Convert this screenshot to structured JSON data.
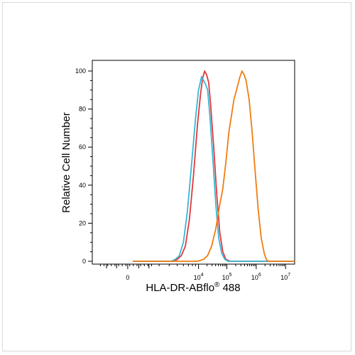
{
  "chart_data": {
    "type": "line",
    "xlabel": "HLA-DR-ABflo",
    "xlabel_sup": "®",
    "xlabel_suffix": " 488",
    "ylabel": "Relative Cell Number",
    "y_ticks": [
      "0",
      "20",
      "40",
      "60",
      "80",
      "100"
    ],
    "x_ticks": [
      {
        "text": "0",
        "base": "0",
        "exp": ""
      },
      {
        "text": "10^4",
        "base": "10",
        "exp": "4"
      },
      {
        "text": "10^5",
        "base": "10",
        "exp": "5"
      },
      {
        "text": "10^6",
        "base": "10",
        "exp": "6"
      },
      {
        "text": "10^7",
        "base": "10",
        "exp": "7"
      }
    ],
    "x_scale": "biexponential",
    "ylim": [
      0,
      100
    ],
    "grid": false,
    "legend": "none",
    "series": [
      {
        "color": "#e5373b",
        "points": [
          [
            0.2,
            0
          ],
          [
            0.4,
            0
          ],
          [
            0.42,
            1
          ],
          [
            0.44,
            3
          ],
          [
            0.46,
            8
          ],
          [
            0.48,
            22
          ],
          [
            0.5,
            45
          ],
          [
            0.52,
            72
          ],
          [
            0.535,
            88
          ],
          [
            0.545,
            96
          ],
          [
            0.555,
            100
          ],
          [
            0.565,
            98
          ],
          [
            0.575,
            94
          ],
          [
            0.585,
            82
          ],
          [
            0.6,
            60
          ],
          [
            0.615,
            35
          ],
          [
            0.63,
            15
          ],
          [
            0.645,
            5
          ],
          [
            0.66,
            1
          ],
          [
            0.68,
            0
          ],
          [
            1.0,
            0
          ]
        ]
      },
      {
        "color": "#36b7d6",
        "points": [
          [
            0.2,
            0
          ],
          [
            0.39,
            0
          ],
          [
            0.41,
            1
          ],
          [
            0.43,
            3
          ],
          [
            0.45,
            10
          ],
          [
            0.47,
            26
          ],
          [
            0.49,
            50
          ],
          [
            0.51,
            75
          ],
          [
            0.525,
            90
          ],
          [
            0.54,
            97
          ],
          [
            0.55,
            95
          ],
          [
            0.56,
            93
          ],
          [
            0.57,
            90
          ],
          [
            0.58,
            78
          ],
          [
            0.595,
            55
          ],
          [
            0.61,
            30
          ],
          [
            0.625,
            12
          ],
          [
            0.64,
            4
          ],
          [
            0.655,
            1
          ],
          [
            0.67,
            0
          ],
          [
            1.0,
            0
          ]
        ]
      },
      {
        "color": "#ef7d12",
        "points": [
          [
            0.2,
            0
          ],
          [
            0.52,
            0
          ],
          [
            0.55,
            1
          ],
          [
            0.57,
            3
          ],
          [
            0.59,
            8
          ],
          [
            0.61,
            17
          ],
          [
            0.63,
            30
          ],
          [
            0.645,
            38
          ],
          [
            0.66,
            52
          ],
          [
            0.675,
            68
          ],
          [
            0.69,
            78
          ],
          [
            0.7,
            85
          ],
          [
            0.71,
            89
          ],
          [
            0.72,
            93
          ],
          [
            0.73,
            97
          ],
          [
            0.74,
            100
          ],
          [
            0.75,
            98
          ],
          [
            0.76,
            95
          ],
          [
            0.775,
            85
          ],
          [
            0.79,
            68
          ],
          [
            0.805,
            47
          ],
          [
            0.82,
            27
          ],
          [
            0.835,
            12
          ],
          [
            0.85,
            4
          ],
          [
            0.86,
            1
          ],
          [
            0.87,
            0
          ],
          [
            1.0,
            0
          ]
        ]
      }
    ]
  }
}
